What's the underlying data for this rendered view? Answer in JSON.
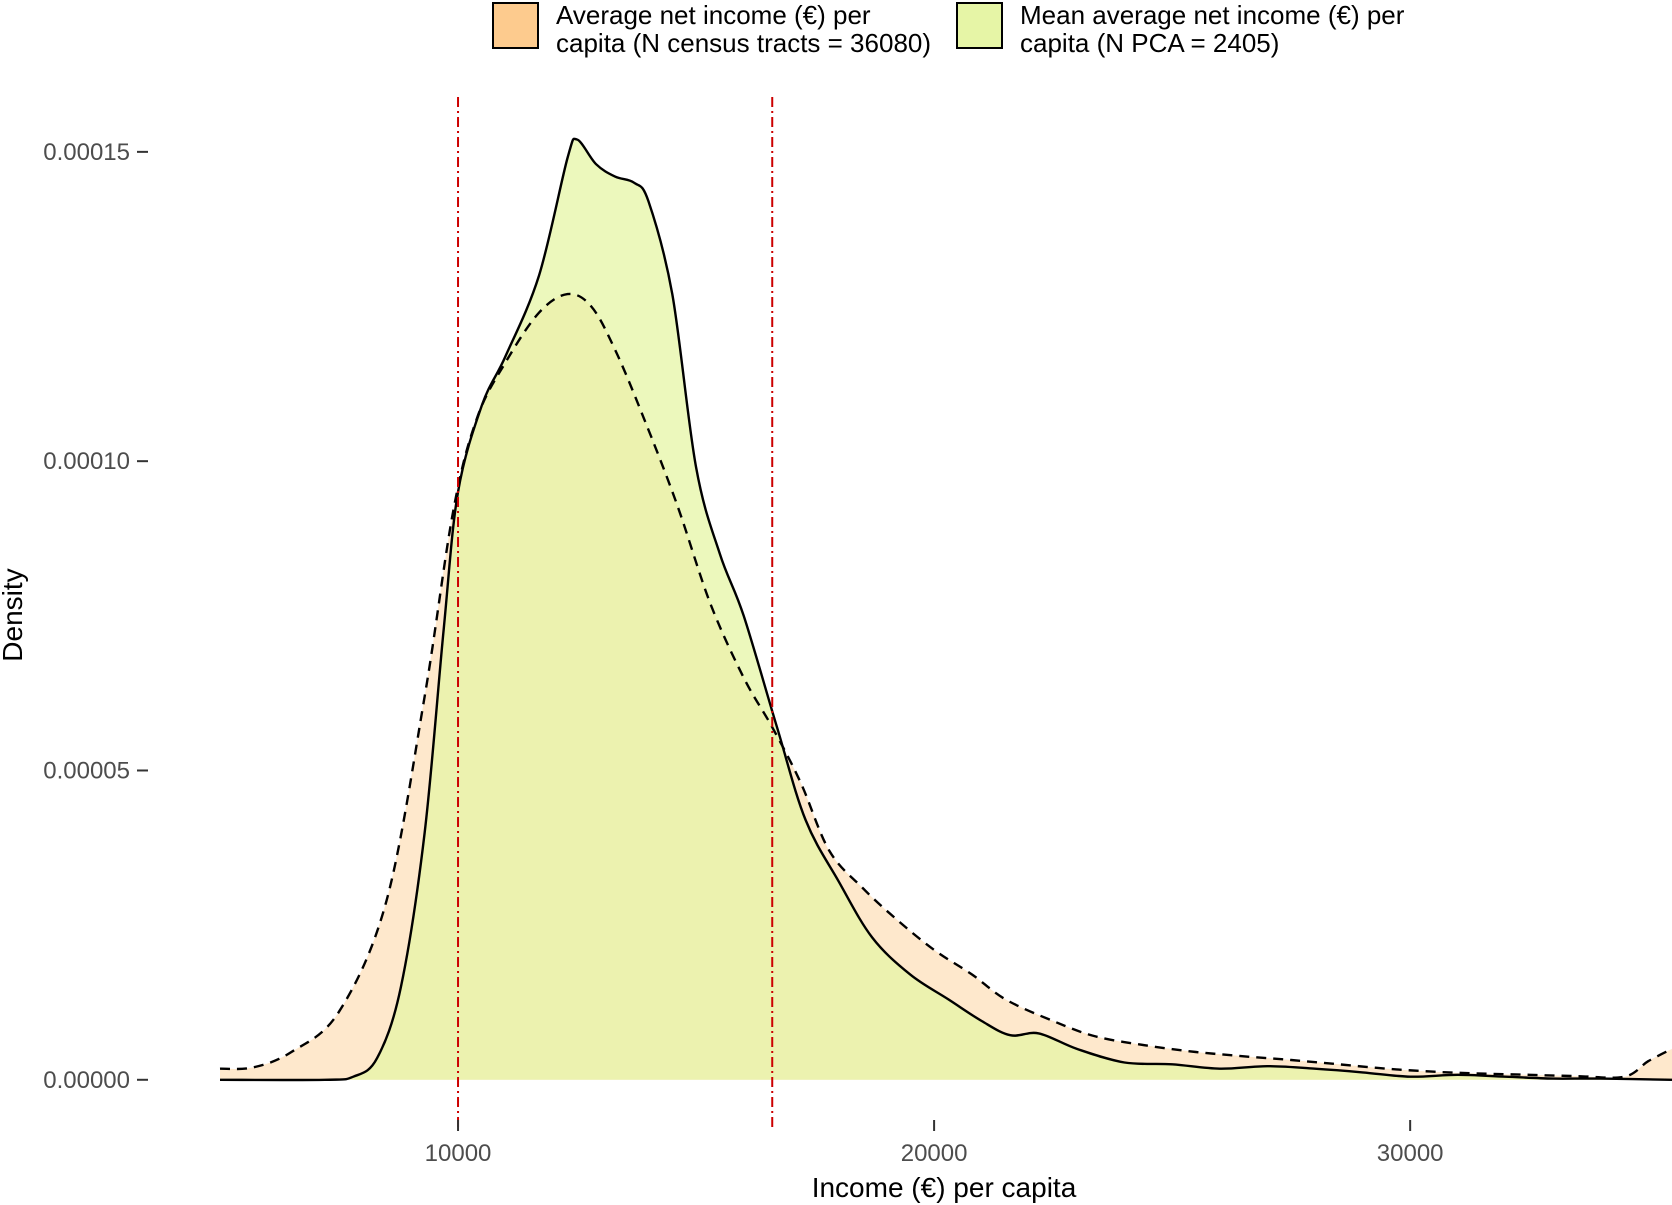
{
  "chart_data": {
    "type": "area",
    "xlabel": "Income (€) per capita",
    "ylabel": "Density",
    "xlim": [
      5000,
      35500
    ],
    "ylim": [
      -6.5e-06,
      0.00016
    ],
    "x_ticks": [
      10000,
      20000,
      30000
    ],
    "x_tick_labels": [
      "10000",
      "20000",
      "30000"
    ],
    "y_ticks": [
      0,
      5e-05,
      0.0001,
      0.00015
    ],
    "y_tick_labels": [
      "0.00000",
      "0.00005",
      "0.00010",
      "0.00015"
    ],
    "grid": false,
    "legend_position": "top",
    "reference_lines": [
      {
        "x": 10000,
        "color": "#cc0000",
        "style": "dot-dash"
      },
      {
        "x": 16600,
        "color": "#cc0000",
        "style": "dot-dash"
      }
    ],
    "series": [
      {
        "name": "Average net income (€) per capita (N census tracts = 36080)",
        "fill": "#fdcb8e",
        "line_style": "dashed",
        "x": [
          5000,
          5700,
          6500,
          7500,
          8500,
          9300,
          9900,
          10400,
          11000,
          11700,
          12300,
          12800,
          13300,
          13900,
          14600,
          15300,
          16000,
          16600,
          17200,
          17800,
          18500,
          19200,
          20000,
          20800,
          21500,
          22500,
          23400,
          24500,
          25500,
          26500,
          27500,
          28500,
          29500,
          30500,
          31500,
          32500,
          33500,
          34500,
          35000,
          35500
        ],
        "values": [
          1.8e-06,
          2e-06,
          4.5e-06,
          1.1e-05,
          2.9e-05,
          6.2e-05,
          9.2e-05,
          0.000107,
          0.000116,
          0.000124,
          0.000127,
          0.000125,
          0.000118,
          0.000107,
          9.3e-05,
          7.7e-05,
          6.5e-05,
          5.7e-05,
          4.8e-05,
          3.7e-05,
          3.1e-05,
          2.6e-05,
          2.1e-05,
          1.7e-05,
          1.3e-05,
          9.5e-06,
          7e-06,
          5.5e-06,
          4.5e-06,
          3.8e-06,
          3.2e-06,
          2.5e-06,
          1.8e-06,
          1.3e-06,
          1e-06,
          8e-07,
          6e-07,
          5e-07,
          3e-06,
          5e-06
        ]
      },
      {
        "name": "Mean average net income (€) per capita (N PCA = 2405)",
        "fill": "#e6f5a6",
        "line_style": "solid",
        "x": [
          5000,
          7200,
          7800,
          8300,
          8800,
          9300,
          9700,
          10000,
          10500,
          11000,
          11700,
          12300,
          12500,
          12900,
          13300,
          13700,
          14000,
          14500,
          15000,
          15500,
          16000,
          16700,
          17300,
          18000,
          18700,
          19500,
          20300,
          21000,
          21600,
          22200,
          23000,
          24000,
          25000,
          26000,
          27000,
          28000,
          29000,
          30000,
          31000,
          32000,
          33000,
          34000,
          35500
        ],
        "values": [
          0,
          0,
          5e-07,
          3.5e-06,
          1.5e-05,
          4e-05,
          7.3e-05,
          9.5e-05,
          0.000109,
          0.000117,
          0.00013,
          0.000149,
          0.000152,
          0.000148,
          0.000146,
          0.000145,
          0.000142,
          0.000127,
          9.9e-05,
          8.5e-05,
          7.5e-05,
          5.7e-05,
          4.2e-05,
          3.2e-05,
          2.3e-05,
          1.7e-05,
          1.3e-05,
          9.5e-06,
          7.2e-06,
          7.5e-06,
          5e-06,
          2.8e-06,
          2.5e-06,
          1.8e-06,
          2.2e-06,
          1.8e-06,
          1.2e-06,
          5e-07,
          8e-07,
          5e-07,
          2e-07,
          2e-07,
          0
        ]
      }
    ]
  }
}
